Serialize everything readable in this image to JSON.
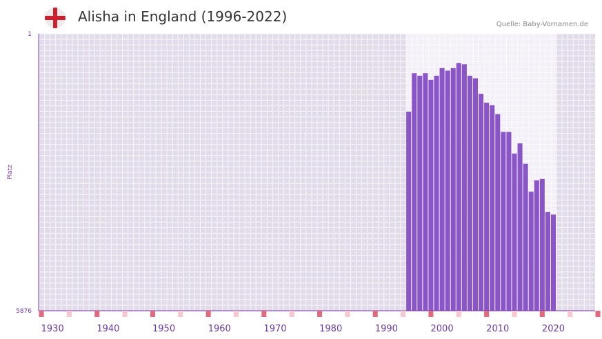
{
  "header": {
    "title": "Alisha in England (1996-2022)",
    "source": "Quelle: Baby-Vornamen.de",
    "flag_icon": "england-flag-icon"
  },
  "colors": {
    "bar": "#8a55c6",
    "plot_bg": "#e2dcea",
    "highlight_bg": "#f3f0f7",
    "axis": "#7a3aa8",
    "marker_strong": "#e06a80",
    "marker_light": "#f6c8d2"
  },
  "chart_data": {
    "type": "bar",
    "title": "Alisha in England (1996-2022)",
    "xlabel": "",
    "ylabel": "Platz",
    "ylim": [
      1,
      5876
    ],
    "y_inverted": true,
    "y_ticks": [
      "1",
      "5876"
    ],
    "xlim": [
      1928,
      2028
    ],
    "x_ticks": [
      "1930",
      "1940",
      "1950",
      "1960",
      "1970",
      "1980",
      "1990",
      "2000",
      "2010",
      "2020"
    ],
    "highlight_range": [
      1994,
      2021
    ],
    "categories": [
      1994,
      1995,
      1996,
      1997,
      1998,
      1999,
      2000,
      2001,
      2002,
      2003,
      2004,
      2005,
      2006,
      2007,
      2008,
      2009,
      2010,
      2011,
      2012,
      2013,
      2014,
      2015,
      2016,
      2017,
      2018,
      2019,
      2020
    ],
    "values": [
      1653,
      837,
      891,
      837,
      978,
      891,
      729,
      783,
      729,
      621,
      648,
      891,
      945,
      1274,
      1463,
      1517,
      1705,
      2083,
      2083,
      2542,
      2326,
      2758,
      3351,
      3108,
      3081,
      3782,
      3836
    ]
  }
}
